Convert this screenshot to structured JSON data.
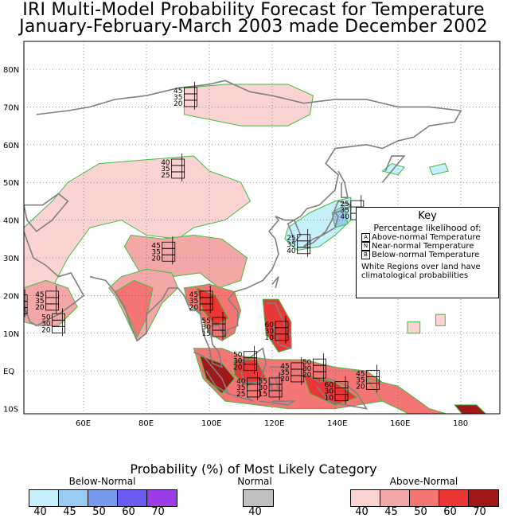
{
  "title": {
    "line1": "IRI Multi-Model Probability Forecast for Temperature",
    "line2": "January-February-March 2003 made December 2002"
  },
  "axes": {
    "lat_ticks": [
      "80N",
      "70N",
      "60N",
      "50N",
      "40N",
      "30N",
      "20N",
      "10N",
      "EQ",
      "10S"
    ],
    "lon_ticks": [
      "60E",
      "80E",
      "100E",
      "120E",
      "140E",
      "160E",
      "180"
    ]
  },
  "key": {
    "title": "Key",
    "subtitle": "Percentage likelihood of:",
    "lines": [
      {
        "letter": "A",
        "text": "Above-normal Temperature"
      },
      {
        "letter": "N",
        "text": "Near-normal Temperature"
      },
      {
        "letter": "B",
        "text": "Below-normal Temperature"
      }
    ],
    "note": "White Regions over land have climatological probabilities"
  },
  "station_boxes": [
    {
      "lon": 92,
      "lat": 72,
      "a": "45",
      "n": "35",
      "b": "20"
    },
    {
      "lon": 88,
      "lat": 53,
      "a": "40",
      "n": "35",
      "b": "25"
    },
    {
      "lon": 145,
      "lat": 42,
      "a": "25",
      "n": "35",
      "b": "40"
    },
    {
      "lon": 128,
      "lat": 33,
      "a": "25",
      "n": "35",
      "b": "40"
    },
    {
      "lon": 85,
      "lat": 31,
      "a": "45",
      "n": "35",
      "b": "20"
    },
    {
      "lon": 48,
      "lat": 18,
      "a": "45",
      "n": "35",
      "b": "20"
    },
    {
      "lon": 38,
      "lat": 17,
      "a": "45",
      "n": "35",
      "b": "20"
    },
    {
      "lon": 50,
      "lat": 12,
      "a": "50",
      "n": "30",
      "b": "20"
    },
    {
      "lon": 97,
      "lat": 18,
      "a": "45",
      "n": "35",
      "b": "20"
    },
    {
      "lon": 101,
      "lat": 11,
      "a": "55",
      "n": "30",
      "b": "15"
    },
    {
      "lon": 121,
      "lat": 10,
      "a": "60",
      "n": "30",
      "b": "10"
    },
    {
      "lon": 111,
      "lat": 2,
      "a": "50",
      "n": "30",
      "b": "20"
    },
    {
      "lon": 133,
      "lat": 0,
      "a": "50",
      "n": "30",
      "b": "20"
    },
    {
      "lon": 126,
      "lat": -1,
      "a": "45",
      "n": "35",
      "b": "20"
    },
    {
      "lon": 112,
      "lat": -5,
      "a": "40",
      "n": "35",
      "b": "25"
    },
    {
      "lon": 119,
      "lat": -5,
      "a": "55",
      "n": "30",
      "b": "15"
    },
    {
      "lon": 140,
      "lat": -6,
      "a": "60",
      "n": "30",
      "b": "10"
    },
    {
      "lon": 150,
      "lat": -3,
      "a": "45",
      "n": "35",
      "b": "20"
    }
  ],
  "legend": {
    "title": "Probability (%) of Most Likely Category",
    "below": {
      "label": "Below-Normal",
      "colors": [
        "#c6f0fb",
        "#99ccf2",
        "#7799ee",
        "#6a5cf2",
        "#9b3ce8"
      ],
      "ticks": [
        "40",
        "45",
        "50",
        "60",
        "70"
      ]
    },
    "normal": {
      "label": "Normal",
      "colors": [
        "#c0c0c0"
      ],
      "ticks": [
        "40"
      ]
    },
    "above": {
      "label": "Above-Normal",
      "colors": [
        "#fcd3d3",
        "#f3a7a7",
        "#f57575",
        "#ec3636",
        "#a11616"
      ],
      "ticks": [
        "40",
        "45",
        "50",
        "60",
        "70"
      ]
    }
  }
}
